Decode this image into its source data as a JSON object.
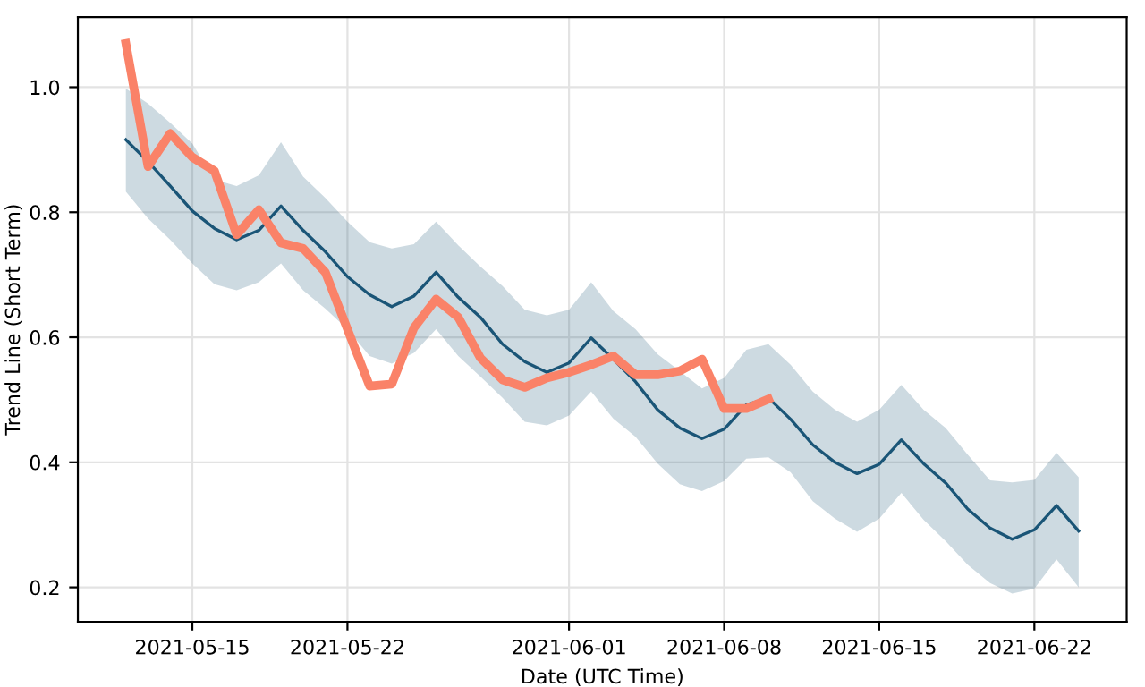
{
  "chart_data": {
    "type": "line",
    "xlabel": "Date (UTC Time)",
    "ylabel": "Trend Line (Short Term)",
    "xlim": [
      "2021-05-09T20:00",
      "2021-06-26T04:00"
    ],
    "ylim": [
      0.145,
      1.112
    ],
    "xticks": [
      "2021-05-15",
      "2021-05-22",
      "2021-06-01",
      "2021-06-08",
      "2021-06-15",
      "2021-06-22"
    ],
    "yticks": [
      0.2,
      0.4,
      0.6,
      0.8,
      {
        "value": 1,
        "label": "1.0"
      }
    ],
    "grid": true,
    "legend": false,
    "series": [
      {
        "color": "#1a5577",
        "x": [
          "2021-05-12",
          "2021-05-13",
          "2021-05-14",
          "2021-05-15",
          "2021-05-16",
          "2021-05-17",
          "2021-05-18",
          "2021-05-19",
          "2021-05-20",
          "2021-05-21",
          "2021-05-22",
          "2021-05-23",
          "2021-05-24",
          "2021-05-25",
          "2021-05-26",
          "2021-05-27",
          "2021-05-28",
          "2021-05-29",
          "2021-05-30",
          "2021-05-31",
          "2021-06-01",
          "2021-06-02",
          "2021-06-03",
          "2021-06-04",
          "2021-06-05",
          "2021-06-06",
          "2021-06-07",
          "2021-06-08",
          "2021-06-09",
          "2021-06-10",
          "2021-06-11",
          "2021-06-12",
          "2021-06-13",
          "2021-06-14",
          "2021-06-15",
          "2021-06-16",
          "2021-06-17",
          "2021-06-18",
          "2021-06-19",
          "2021-06-20",
          "2021-06-21",
          "2021-06-22",
          "2021-06-23",
          "2021-06-24"
        ],
        "lower": [
          0.833,
          0.79,
          0.756,
          0.718,
          0.685,
          0.675,
          0.688,
          0.718,
          0.675,
          0.646,
          0.613,
          0.57,
          0.558,
          0.575,
          0.613,
          0.57,
          0.537,
          0.503,
          0.465,
          0.459,
          0.475,
          0.513,
          0.47,
          0.441,
          0.398,
          0.365,
          0.354,
          0.37,
          0.406,
          0.408,
          0.384,
          0.338,
          0.31,
          0.289,
          0.31,
          0.351,
          0.308,
          0.274,
          0.236,
          0.207,
          0.19,
          0.198,
          0.245,
          0.2
        ],
        "upper": [
          0.998,
          0.974,
          0.943,
          0.91,
          0.852,
          0.842,
          0.859,
          0.912,
          0.857,
          0.823,
          0.785,
          0.752,
          0.742,
          0.749,
          0.785,
          0.747,
          0.713,
          0.682,
          0.644,
          0.635,
          0.644,
          0.688,
          0.642,
          0.613,
          0.573,
          0.546,
          0.518,
          0.535,
          0.58,
          0.589,
          0.556,
          0.513,
          0.484,
          0.465,
          0.484,
          0.524,
          0.484,
          0.455,
          0.412,
          0.371,
          0.368,
          0.372,
          0.415,
          0.376
        ],
        "values": [
          0.916,
          0.881,
          0.842,
          0.802,
          0.774,
          0.756,
          0.771,
          0.81,
          0.771,
          0.737,
          0.697,
          0.668,
          0.649,
          0.666,
          0.704,
          0.664,
          0.632,
          0.589,
          0.561,
          0.544,
          0.559,
          0.599,
          0.565,
          0.529,
          0.484,
          0.455,
          0.438,
          0.453,
          0.492,
          0.503,
          0.469,
          0.428,
          0.4,
          0.382,
          0.397,
          0.436,
          0.398,
          0.367,
          0.325,
          0.295,
          0.277,
          0.292,
          0.331,
          0.29
        ]
      },
      {
        "type": "line",
        "color": "#fa8268",
        "x": [
          "2021-05-12",
          "2021-05-13",
          "2021-05-14",
          "2021-05-15",
          "2021-05-16",
          "2021-05-17",
          "2021-05-18",
          "2021-05-19",
          "2021-05-20",
          "2021-05-21",
          "2021-05-22",
          "2021-05-23",
          "2021-05-24",
          "2021-05-25",
          "2021-05-26",
          "2021-05-27",
          "2021-05-28",
          "2021-05-29",
          "2021-05-30",
          "2021-05-31",
          "2021-06-01",
          "2021-06-02",
          "2021-06-03",
          "2021-06-04",
          "2021-06-05",
          "2021-06-06",
          "2021-06-07",
          "2021-06-08",
          "2021-06-09",
          "2021-06-10"
        ],
        "values": [
          1.07,
          0.873,
          0.926,
          0.888,
          0.866,
          0.764,
          0.804,
          0.751,
          0.742,
          0.704,
          0.613,
          0.522,
          0.525,
          0.615,
          0.661,
          0.632,
          0.567,
          0.532,
          0.52,
          0.535,
          0.544,
          0.556,
          0.57,
          0.54,
          0.54,
          0.546,
          0.565,
          0.486,
          0.486,
          0.501
        ]
      }
    ]
  }
}
